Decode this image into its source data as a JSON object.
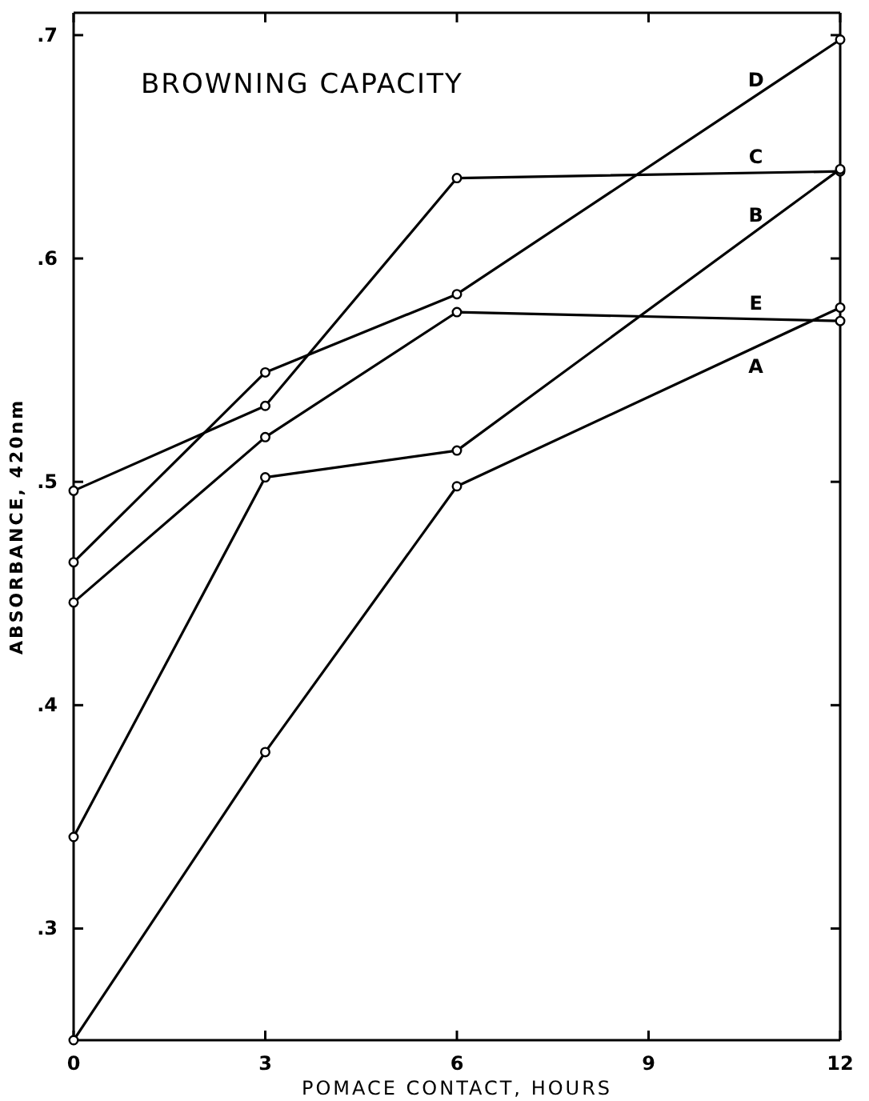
{
  "chart_data": {
    "type": "line",
    "title": "BROWNING CAPACITY",
    "xlabel": "POMACE CONTACT, HOURS",
    "ylabel": "ABSORBANCE, 420nm",
    "series": [
      {
        "name": "D",
        "color": "#000000",
        "x": [
          0,
          3,
          6,
          12
        ],
        "values": [
          0.464,
          0.549,
          0.584,
          0.698
        ]
      },
      {
        "name": "C",
        "color": "#000000",
        "x": [
          0,
          3,
          6,
          12
        ],
        "values": [
          0.496,
          0.534,
          0.636,
          0.639
        ]
      },
      {
        "name": "B",
        "color": "#000000",
        "x": [
          0,
          3,
          6,
          12
        ],
        "values": [
          0.341,
          0.502,
          0.514,
          0.64
        ]
      },
      {
        "name": "E",
        "color": "#000000",
        "x": [
          0,
          3,
          6,
          12
        ],
        "values": [
          0.446,
          0.52,
          0.576,
          0.572
        ]
      },
      {
        "name": "A",
        "color": "#000000",
        "x": [
          0,
          3,
          6,
          12
        ],
        "values": [
          0.25,
          0.379,
          0.498,
          0.578
        ]
      }
    ],
    "xlim": [
      0,
      12
    ],
    "xticks": [
      0,
      3,
      6,
      9,
      12
    ],
    "ylim": [
      0.25,
      0.71
    ],
    "yticks": [
      {
        "value": 0.3,
        "label": ".3"
      },
      {
        "value": 0.4,
        "label": ".4"
      },
      {
        "value": 0.5,
        "label": ".5"
      },
      {
        "value": 0.6,
        "label": ".6"
      },
      {
        "value": 0.7,
        "label": ".7"
      }
    ],
    "grid": false,
    "marker": "circle",
    "line_style": "solid"
  }
}
